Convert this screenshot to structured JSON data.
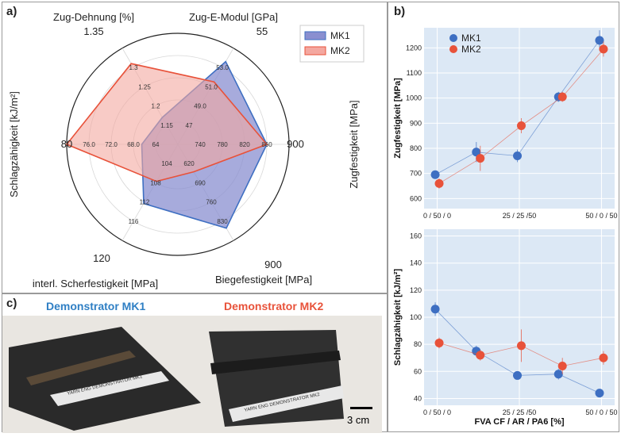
{
  "panels": {
    "a": "a)",
    "b": "b)",
    "c": "c)"
  },
  "colors": {
    "mk1": "#3e6fc2",
    "mk2": "#e8523a",
    "mk1_fill": "#8a8fd0",
    "mk2_fill": "#f4a8a0",
    "overlap": "#b07ab6",
    "scatter_bg": "#dce8f5"
  },
  "chart_data": [
    {
      "type": "radar",
      "axes": [
        {
          "label": "Zug-E-Modul [GPa]",
          "max_label": "55",
          "ticks": [
            "47",
            "49.0",
            "51.0",
            "53.0"
          ]
        },
        {
          "label": "Zugfestigkeit [MPa]",
          "max_label": "900",
          "ticks": [
            "740",
            "780",
            "820",
            "860"
          ]
        },
        {
          "label": "Biegefestigkeit [MPa]",
          "max_label": "900",
          "ticks": [
            "620",
            "690",
            "760",
            "830"
          ]
        },
        {
          "label": "interl. Scherfestigkeit [MPa]",
          "max_label": "120",
          "ticks": [
            "104",
            "108",
            "112",
            "116"
          ]
        },
        {
          "label": "Schlagzähigkeit [kJ/m²]",
          "max_label": "80",
          "ticks": [
            "64",
            "68.0",
            "72.0",
            "76.0"
          ]
        },
        {
          "label": "Zug-Dehnung [%]",
          "max_label": "1.35",
          "ticks": [
            "1.15",
            "1.2",
            "1.25",
            "1.3"
          ]
        }
      ],
      "series": [
        {
          "name": "MK1",
          "values": [
            53.6,
            860,
            855,
            112.3,
            66.5,
            1.17
          ]
        },
        {
          "name": "MK2",
          "values": [
            51.5,
            860,
            650,
            107.7,
            80.0,
            1.31
          ]
        }
      ],
      "legend": [
        "MK1",
        "MK2"
      ],
      "legend_position": "top-right"
    },
    {
      "type": "scatter",
      "ylabel": "Zugfestigkeit [MPa]",
      "ylim": [
        560,
        1280
      ],
      "yticks": [
        600,
        700,
        800,
        900,
        1000,
        1100,
        1200
      ],
      "xtick_labels": [
        "0 / 50 / 0",
        "25 / 25 /50",
        "50 / 0 / 50"
      ],
      "series": [
        {
          "name": "MK1",
          "x": [
            0,
            12.5,
            25,
            37.5,
            50
          ],
          "y": [
            695,
            785,
            770,
            1005,
            1230
          ],
          "err": [
            15,
            40,
            25,
            20,
            40
          ]
        },
        {
          "name": "MK2",
          "x": [
            0,
            12.5,
            25,
            37.5,
            50
          ],
          "y": [
            660,
            760,
            890,
            1005,
            1195
          ],
          "err": [
            20,
            50,
            30,
            20,
            30
          ]
        }
      ],
      "legend": [
        "MK1",
        "MK2"
      ],
      "legend_position": "top-left"
    },
    {
      "type": "scatter",
      "ylabel": "Schlagzähigkeit [kJ/m²]",
      "xlabel": "FVA CF / AR / PA6 [%]",
      "ylim": [
        35,
        165
      ],
      "yticks": [
        40,
        60,
        80,
        100,
        120,
        140,
        160
      ],
      "xtick_labels": [
        "0 / 50 / 0",
        "25 / 25 /50",
        "50 / 0 / 50"
      ],
      "series": [
        {
          "name": "MK1",
          "x": [
            0,
            12.5,
            25,
            37.5,
            50
          ],
          "y": [
            106,
            75,
            57,
            58,
            44
          ],
          "err": [
            5,
            4,
            3,
            4,
            2
          ]
        },
        {
          "name": "MK2",
          "x": [
            0,
            12.5,
            25,
            37.5,
            50
          ],
          "y": [
            81,
            72,
            79,
            64,
            70
          ],
          "err": [
            4,
            4,
            12,
            6,
            5
          ]
        }
      ]
    }
  ],
  "demonstrators": {
    "mk1_title": "Demonstrator MK1",
    "mk2_title": "Demonstrator MK2",
    "label_mk1": "YARN ENG DEMONSTRATOR MK1",
    "label_mk2": "YARN ENG DEMONSTRATOR MK2",
    "scale_label": "3 cm"
  }
}
